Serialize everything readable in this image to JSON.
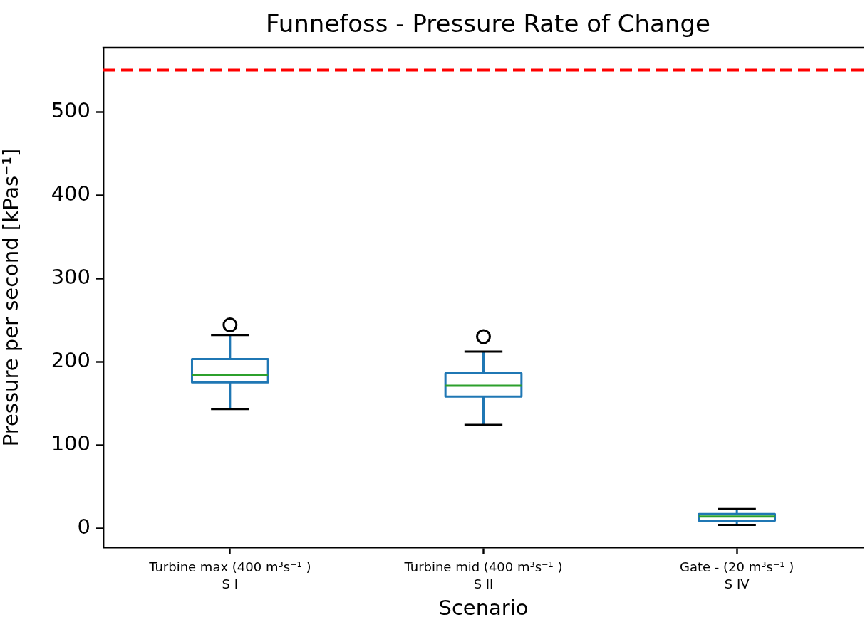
{
  "chart_data": {
    "type": "box",
    "title": "Funnefoss - Pressure Rate of Change",
    "xlabel": "Scenario",
    "ylabel": "Pressure per second [kPas⁻¹]",
    "categories": [
      "Turbine max (400 m³s⁻¹ )\nS I",
      "Turbine mid (400 m³s⁻¹ )\nS II",
      "Gate - (20 m³s⁻¹ )\nS IV"
    ],
    "series": [
      {
        "color": "#1f77b4",
        "boxes": [
          {
            "low": 143,
            "q1": 175,
            "median": 184,
            "q3": 203,
            "high": 232,
            "outliers": [
              244
            ]
          },
          {
            "low": 124,
            "q1": 158,
            "median": 171,
            "q3": 186,
            "high": 212,
            "outliers": [
              230
            ]
          },
          {
            "low": 4,
            "q1": 9,
            "median": 14,
            "q3": 17,
            "high": 23
          }
        ]
      }
    ],
    "ylim": [
      -23,
      577
    ],
    "yticks": [
      0,
      100,
      200,
      300,
      400,
      500
    ],
    "ref_lines": [
      {
        "axis": "y",
        "value": 550,
        "color": "#ff0000",
        "line_style": "dashed"
      }
    ],
    "grid": false,
    "legend": false
  }
}
